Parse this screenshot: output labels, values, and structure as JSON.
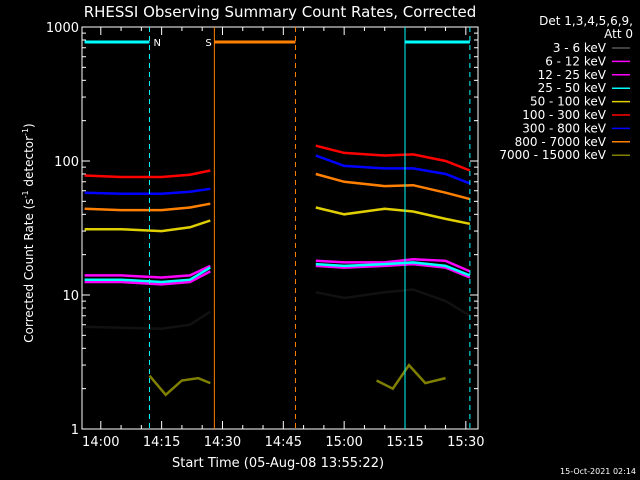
{
  "chart_data": {
    "type": "line",
    "title": "RHESSI Observing Summary Count Rates, Corrected",
    "xlabel": "Start Time (05-Aug-08 13:55:22)",
    "ylabel": "Corrected Count Rate (s",
    "ylabel_sup1": "-1",
    "ylabel_mid": " detector",
    "ylabel_sup2": "-1",
    "ylabel_end": ")",
    "y_scale": "log",
    "ylim": [
      1,
      1000
    ],
    "xlim": [
      "13:55:22",
      "15:33:00"
    ],
    "x_ticks": [
      "14:00",
      "14:15",
      "14:30",
      "14:45",
      "15:00",
      "15:15",
      "15:30"
    ],
    "y_ticks": [
      "1",
      "10",
      "100",
      "1000"
    ],
    "legend_header": [
      "Det 1,3,4,5,6,9,",
      "Att 0"
    ],
    "legend_position": "right",
    "timestamp": "15-Oct-2021 02:14",
    "series": [
      {
        "name": "3 - 6 keV",
        "color": "#000000",
        "segments": [
          {
            "x": [
              "13:56",
              "14:05",
              "14:15",
              "14:22",
              "14:27"
            ],
            "y": [
              5.8,
              5.7,
              5.6,
              6.0,
              7.5
            ]
          },
          {
            "x": [
              "14:53",
              "15:00",
              "15:10",
              "15:17",
              "15:25",
              "15:31"
            ],
            "y": [
              10.5,
              9.5,
              10.5,
              11.0,
              9.0,
              7.0
            ]
          }
        ]
      },
      {
        "name": "6 - 12 keV",
        "color": "#ff00ff",
        "segments": [
          {
            "x": [
              "13:56",
              "14:05",
              "14:15",
              "14:22",
              "14:27"
            ],
            "y": [
              14.0,
              14.0,
              13.5,
              14.0,
              16.5
            ]
          },
          {
            "x": [
              "14:53",
              "15:00",
              "15:10",
              "15:17",
              "15:25",
              "15:31"
            ],
            "y": [
              18.0,
              17.5,
              17.5,
              18.5,
              18.0,
              15.0
            ]
          }
        ]
      },
      {
        "name": "12 - 25 keV",
        "color": "#ff00ff",
        "segments": [
          {
            "x": [
              "13:56",
              "14:05",
              "14:15",
              "14:22",
              "14:27"
            ],
            "y": [
              12.5,
              12.5,
              12.0,
              12.5,
              15.0
            ]
          },
          {
            "x": [
              "14:53",
              "15:00",
              "15:10",
              "15:17",
              "15:25",
              "15:31"
            ],
            "y": [
              16.5,
              16.0,
              16.5,
              17.0,
              16.0,
              13.5
            ]
          }
        ]
      },
      {
        "name": "25 - 50 keV",
        "color": "#00ffff",
        "segments": [
          {
            "x": [
              "13:56",
              "14:05",
              "14:15",
              "14:22",
              "14:27"
            ],
            "y": [
              13.0,
              13.0,
              12.5,
              13.0,
              16.0
            ]
          },
          {
            "x": [
              "14:53",
              "15:00",
              "15:10",
              "15:17",
              "15:25",
              "15:31"
            ],
            "y": [
              17.0,
              16.5,
              17.0,
              17.5,
              16.5,
              14.0
            ]
          }
        ]
      },
      {
        "name": "50 - 100 keV",
        "color": "#e0d000",
        "segments": [
          {
            "x": [
              "13:56",
              "14:05",
              "14:15",
              "14:22",
              "14:27"
            ],
            "y": [
              31,
              31,
              30,
              32,
              36
            ]
          },
          {
            "x": [
              "14:53",
              "15:00",
              "15:10",
              "15:17",
              "15:25",
              "15:31"
            ],
            "y": [
              45,
              40,
              44,
              42,
              37,
              34
            ]
          }
        ]
      },
      {
        "name": "100 - 300 keV",
        "color": "#ff0000",
        "segments": [
          {
            "x": [
              "13:56",
              "14:05",
              "14:15",
              "14:22",
              "14:27"
            ],
            "y": [
              78,
              76,
              76,
              79,
              85
            ]
          },
          {
            "x": [
              "14:53",
              "15:00",
              "15:10",
              "15:17",
              "15:25",
              "15:31"
            ],
            "y": [
              130,
              115,
              110,
              112,
              100,
              85
            ]
          }
        ]
      },
      {
        "name": "300 - 800 keV",
        "color": "#0000ff",
        "segments": [
          {
            "x": [
              "13:56",
              "14:05",
              "14:15",
              "14:22",
              "14:27"
            ],
            "y": [
              58,
              57,
              57,
              59,
              62
            ]
          },
          {
            "x": [
              "14:53",
              "15:00",
              "15:10",
              "15:17",
              "15:25",
              "15:31"
            ],
            "y": [
              110,
              92,
              88,
              88,
              80,
              68
            ]
          }
        ]
      },
      {
        "name": "800 - 7000 keV",
        "color": "#ff8000",
        "segments": [
          {
            "x": [
              "13:56",
              "14:05",
              "14:15",
              "14:22",
              "14:27"
            ],
            "y": [
              44,
              43,
              43,
              45,
              48
            ]
          },
          {
            "x": [
              "14:53",
              "15:00",
              "15:10",
              "15:17",
              "15:25",
              "15:31"
            ],
            "y": [
              80,
              70,
              65,
              66,
              58,
              52
            ]
          }
        ]
      },
      {
        "name": "7000 - 15000 keV",
        "color": "#808000",
        "segments": [
          {
            "x": [
              "14:12",
              "14:16",
              "14:20",
              "14:24",
              "14:27"
            ],
            "y": [
              2.5,
              1.8,
              2.3,
              2.4,
              2.2
            ]
          },
          {
            "x": [
              "15:08",
              "15:12",
              "15:16",
              "15:20",
              "15:25"
            ],
            "y": [
              2.3,
              2.0,
              3.0,
              2.2,
              2.4
            ]
          }
        ]
      }
    ],
    "markers": [
      {
        "label": "N",
        "color": "#00ffff",
        "bar": [
          "13:56",
          "14:12"
        ],
        "dashed_at": "14:12",
        "solid_at": null
      },
      {
        "label": "S",
        "color": "#ff8000",
        "bar": [
          "14:28",
          "14:48"
        ],
        "dashed_at": "14:48",
        "solid_at": "14:28"
      },
      {
        "label": "",
        "color": "#00ffff",
        "bar": [
          "15:15",
          "15:31"
        ],
        "dashed_at": "15:31",
        "solid_at": "15:15"
      }
    ]
  }
}
